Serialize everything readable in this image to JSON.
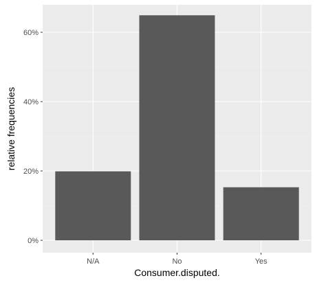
{
  "chart_data": {
    "type": "bar",
    "title": "",
    "xlabel": "Consumer.disputed.",
    "ylabel": "relative frequencies",
    "categories": [
      "N/A",
      "No",
      "Yes"
    ],
    "values": [
      0.199,
      0.649,
      0.153
    ],
    "ylim": [
      0,
      0.68
    ],
    "yticks": [
      0,
      0.2,
      0.4,
      0.6
    ],
    "ytick_labels": [
      "0%",
      "20%",
      "40%",
      "60%"
    ],
    "grid": true,
    "legend": "none"
  },
  "colors": {
    "panel_background": "#ebebeb",
    "grid_major": "#ffffff",
    "grid_minor": "#f5f5f5",
    "bar_fill": "#595959",
    "tick_text": "#4d4d4d",
    "axis_title_text": "#000000"
  }
}
